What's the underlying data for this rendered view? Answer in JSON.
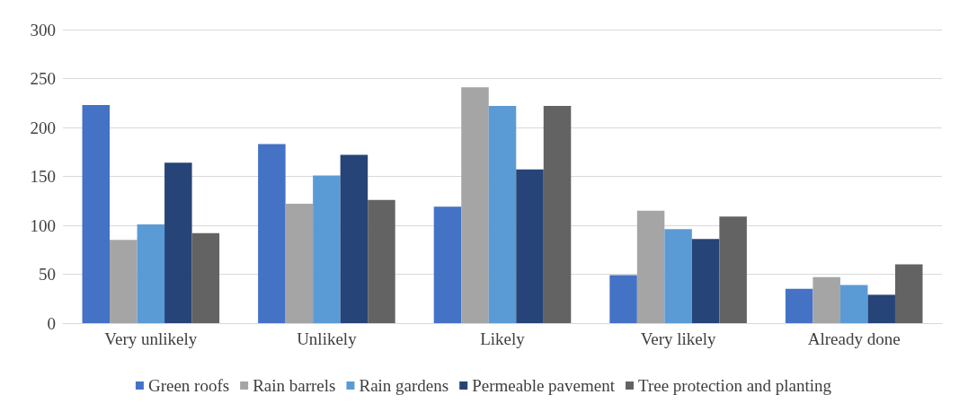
{
  "chart_data": {
    "type": "bar",
    "categories": [
      "Very unlikely",
      "Unlikely",
      "Likely",
      "Very likely",
      "Already done"
    ],
    "series": [
      {
        "name": "Green roofs",
        "color": "#4472c4",
        "values": [
          223,
          183,
          119,
          49,
          35
        ]
      },
      {
        "name": "Rain barrels",
        "color": "#a5a5a5",
        "values": [
          85,
          122,
          241,
          115,
          47
        ]
      },
      {
        "name": "Rain gardens",
        "color": "#5b9bd5",
        "values": [
          101,
          151,
          222,
          96,
          39
        ]
      },
      {
        "name": "Permeable pavement",
        "color": "#264478",
        "values": [
          164,
          172,
          157,
          86,
          29
        ]
      },
      {
        "name": "Tree protection and planting",
        "color": "#636363",
        "values": [
          92,
          126,
          222,
          109,
          60
        ]
      }
    ],
    "ylim": [
      0,
      300
    ],
    "yticks": [
      0,
      50,
      100,
      150,
      200,
      250,
      300
    ],
    "grid": "y",
    "legend": "bottom"
  }
}
